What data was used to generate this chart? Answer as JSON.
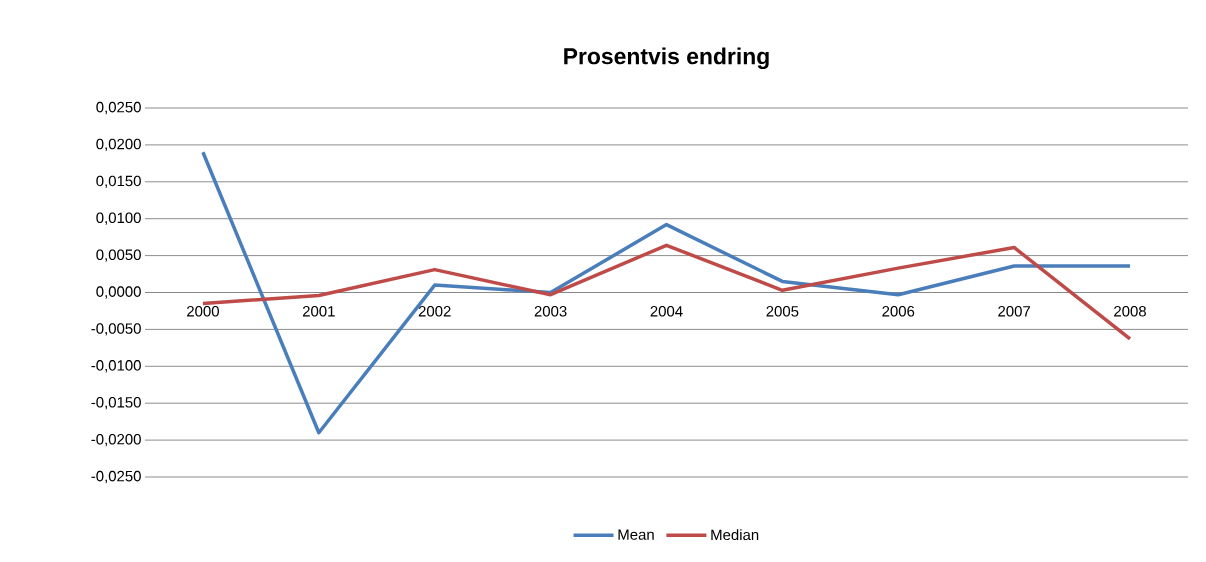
{
  "chart_data": {
    "type": "line",
    "title": "Prosentvis endring",
    "categories": [
      "2000",
      "2001",
      "2002",
      "2003",
      "2004",
      "2005",
      "2006",
      "2007",
      "2008"
    ],
    "series": [
      {
        "name": "Mean",
        "color": "#4a7ebb",
        "values": [
          0.019,
          -0.019,
          0.001,
          0.0,
          0.0092,
          0.0015,
          -0.0003,
          0.0036,
          0.0036
        ]
      },
      {
        "name": "Median",
        "color": "#be4b48",
        "values": [
          -0.0015,
          -0.0004,
          0.0031,
          -0.0003,
          0.0064,
          0.0003,
          0.0033,
          0.0061,
          -0.0063
        ]
      }
    ],
    "ylim": [
      -0.025,
      0.025
    ],
    "yticks": [
      {
        "value": -0.025,
        "label": "-0,0250"
      },
      {
        "value": -0.02,
        "label": "-0,0200"
      },
      {
        "value": -0.015,
        "label": "-0,0150"
      },
      {
        "value": -0.01,
        "label": "-0,0100"
      },
      {
        "value": -0.005,
        "label": "-0,0050"
      },
      {
        "value": 0,
        "label": "0,0000"
      },
      {
        "value": 0.005,
        "label": "0,0050"
      },
      {
        "value": 0.01,
        "label": "0,0100"
      },
      {
        "value": 0.015,
        "label": "0,0150"
      },
      {
        "value": 0.02,
        "label": "0,0200"
      },
      {
        "value": 0.025,
        "label": "0,0250"
      }
    ],
    "grid": "y",
    "legend": "bottom",
    "marker": "none",
    "line_style": "solid"
  }
}
